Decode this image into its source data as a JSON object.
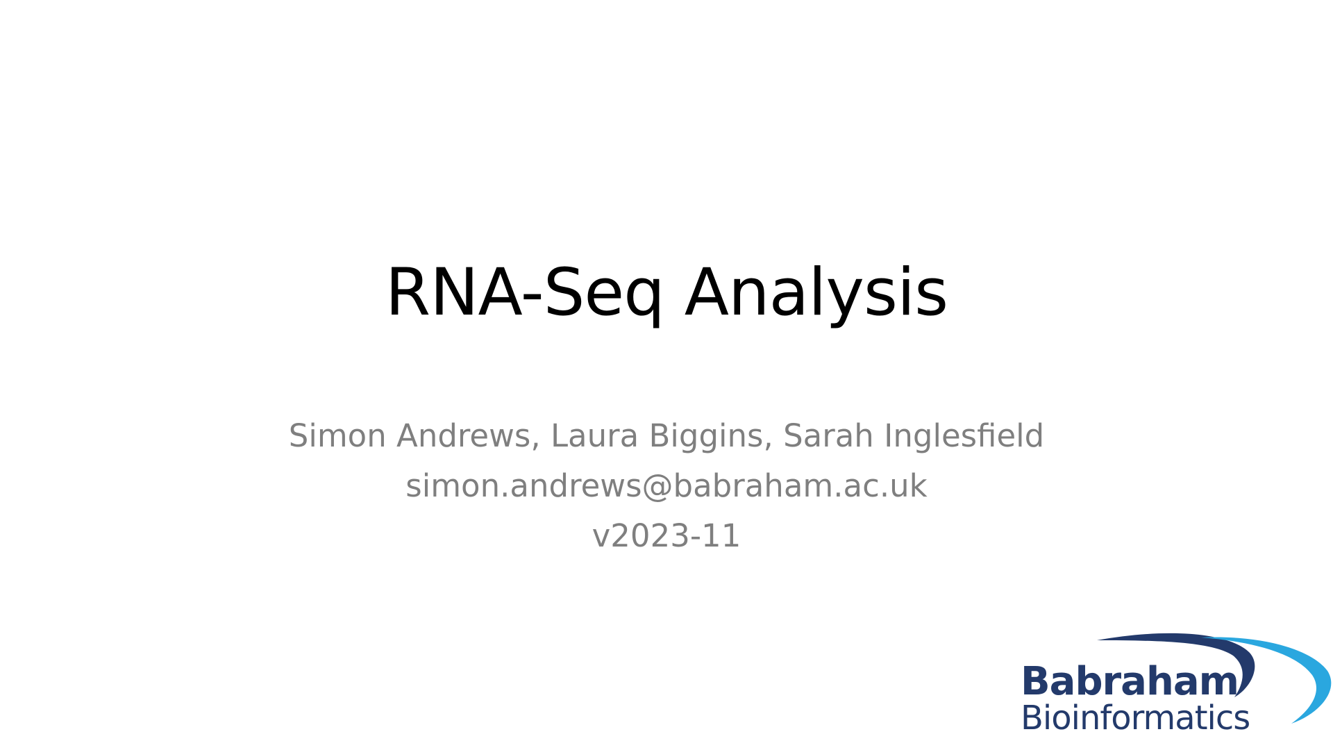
{
  "slide": {
    "title": "RNA-Seq Analysis",
    "subtitle_lines": [
      "Simon Andrews, Laura Biggins, Sarah Inglesfield",
      "simon.andrews@babraham.ac.uk",
      "v2023-11"
    ]
  },
  "logo": {
    "line1": "Babraham",
    "line2": "Bioinformatics",
    "colors": {
      "text": "#233a6b",
      "swoosh_dark": "#233a6b",
      "swoosh_light": "#2aa7df"
    }
  }
}
